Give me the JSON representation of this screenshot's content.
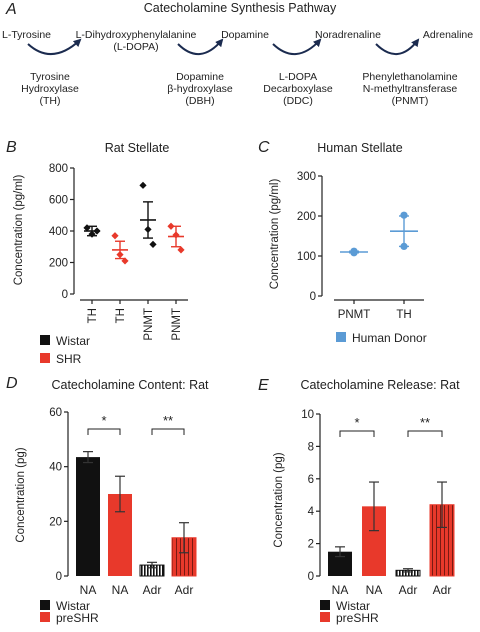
{
  "figure": {
    "panel_letters": [
      "A",
      "B",
      "C",
      "D",
      "E"
    ]
  },
  "pathway": {
    "title": "Catecholamine Synthesis Pathway",
    "compounds": [
      "L-Tyrosine",
      "L-Dihydroxyphenylalanine",
      "(L-DOPA)",
      "Dopamine",
      "Noradrenaline",
      "Adrenaline"
    ],
    "enzymes": [
      {
        "line1": "Tyrosine",
        "line2": "Hydroxylase",
        "line3": "(TH)"
      },
      {
        "line1": "Dopamine",
        "line2": "β-hydroxylase",
        "line3": "(DBH)"
      },
      {
        "line1": "L-DOPA",
        "line2": "Decarboxylase",
        "line3": "(DDC)"
      },
      {
        "line1": "Phenylethanolamine",
        "line2": "N-methyltransferase",
        "line3": "(PNMT)"
      }
    ]
  },
  "chart_data": [
    {
      "panel": "B",
      "type": "scatter",
      "title": "Rat Stellate",
      "ylabel": "Concentration (pg/ml)",
      "ylim": [
        0,
        800
      ],
      "yticks": [
        0,
        200,
        400,
        600,
        800
      ],
      "categories": [
        "TH",
        "TH",
        "PNMT",
        "PNMT"
      ],
      "groups": [
        {
          "category": "TH",
          "series": "Wistar",
          "color": "#111111",
          "mean": 400,
          "sem": 30,
          "points": [
            420,
            380,
            400
          ]
        },
        {
          "category": "TH",
          "series": "SHR",
          "color": "#e8392b",
          "mean": 280,
          "sem": 55,
          "points": [
            370,
            250,
            210
          ]
        },
        {
          "category": "PNMT",
          "series": "Wistar",
          "color": "#111111",
          "mean": 470,
          "sem": 115,
          "points": [
            690,
            410,
            315
          ]
        },
        {
          "category": "PNMT",
          "series": "SHR",
          "color": "#e8392b",
          "mean": 365,
          "sem": 65,
          "points": [
            430,
            375,
            280
          ]
        }
      ],
      "legend": [
        {
          "name": "Wistar",
          "color": "#111111"
        },
        {
          "name": "SHR",
          "color": "#e8392b"
        }
      ]
    },
    {
      "panel": "C",
      "type": "scatter",
      "title": "Human Stellate",
      "ylabel": "Concentration (pg/ml)",
      "ylim": [
        0,
        300
      ],
      "yticks": [
        0,
        100,
        200,
        300
      ],
      "categories": [
        "PNMT",
        "TH"
      ],
      "groups": [
        {
          "category": "PNMT",
          "series": "Human Donor",
          "color": "#5b9bd5",
          "mean": 110,
          "sem": 2,
          "points": [
            108,
            112
          ]
        },
        {
          "category": "TH",
          "series": "Human Donor",
          "color": "#5b9bd5",
          "mean": 162,
          "sem": 38,
          "points": [
            202,
            124
          ]
        }
      ],
      "legend": [
        {
          "name": "Human Donor",
          "color": "#5b9bd5"
        }
      ]
    },
    {
      "panel": "D",
      "type": "bar",
      "title": "Catecholamine Content: Rat",
      "ylabel": "Concentration (pg)",
      "ylim": [
        0,
        60
      ],
      "yticks": [
        0,
        20,
        40,
        60
      ],
      "categories": [
        "NA",
        "NA",
        "Adr",
        "Adr"
      ],
      "values": [
        43.5,
        30,
        4,
        14
      ],
      "errors": [
        2,
        6.5,
        1,
        5.5
      ],
      "bar_series": [
        "Wistar",
        "preSHR",
        "Wistar",
        "preSHR"
      ],
      "hatched": [
        false,
        false,
        true,
        true
      ],
      "significance": [
        {
          "from": 0,
          "to": 1,
          "label": "*"
        },
        {
          "from": 2,
          "to": 3,
          "label": "**"
        }
      ],
      "legend": [
        {
          "name": "Wistar",
          "color": "#111111"
        },
        {
          "name": "preSHR",
          "color": "#e8392b"
        }
      ]
    },
    {
      "panel": "E",
      "type": "bar",
      "title": "Catecholamine Release: Rat",
      "ylabel": "Concentration (pg)",
      "ylim": [
        0,
        10
      ],
      "yticks": [
        0,
        2,
        4,
        6,
        8,
        10
      ],
      "categories": [
        "NA",
        "NA",
        "Adr",
        "Adr"
      ],
      "values": [
        1.5,
        4.3,
        0.35,
        4.4
      ],
      "errors": [
        0.3,
        1.5,
        0.1,
        1.4
      ],
      "bar_series": [
        "Wistar",
        "preSHR",
        "Wistar",
        "preSHR"
      ],
      "hatched": [
        false,
        false,
        true,
        true
      ],
      "significance": [
        {
          "from": 0,
          "to": 1,
          "label": "*"
        },
        {
          "from": 2,
          "to": 3,
          "label": "**"
        }
      ],
      "legend": [
        {
          "name": "Wistar",
          "color": "#111111"
        },
        {
          "name": "preSHR",
          "color": "#e8392b"
        }
      ]
    }
  ]
}
